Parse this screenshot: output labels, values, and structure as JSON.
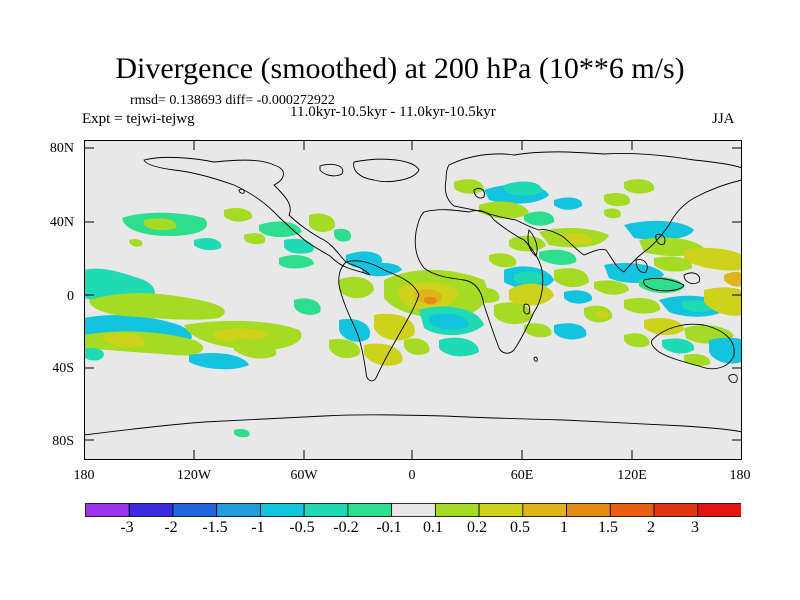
{
  "title": "Divergence (smoothed) at 200 hPa (10**6 m/s)",
  "stats": "rmsd= 0.138693 diff= -0.000272922",
  "experiment": "Expt = tejwi-tejwg",
  "period": "11.0kyr-10.5kyr - 11.0kyr-10.5kyr",
  "season": "JJA",
  "y_axis_labels": [
    "80N",
    "40N",
    "0",
    "40S",
    "80S"
  ],
  "x_axis_labels": [
    "180",
    "120W",
    "60W",
    "0",
    "60E",
    "120E",
    "180"
  ],
  "colorbar": {
    "colors": [
      "#9933ee",
      "#3b2be0",
      "#1e66dd",
      "#1f9ee0",
      "#12c4dd",
      "#20d9b5",
      "#2ddf8d",
      "#e8e8e8",
      "#a6db23",
      "#cfd21b",
      "#e0b418",
      "#e58c14",
      "#e66010",
      "#e2370e",
      "#e4150e"
    ],
    "labels": [
      "-3",
      "-2",
      "-1.5",
      "-1",
      "-0.5",
      "-0.2",
      "-0.1",
      "0.1",
      "0.2",
      "0.5",
      "1",
      "1.5",
      "2",
      "3"
    ]
  },
  "colors": {
    "background": "#ffffff",
    "map_fill": "#e8e8e8",
    "coastline": "#000000"
  }
}
